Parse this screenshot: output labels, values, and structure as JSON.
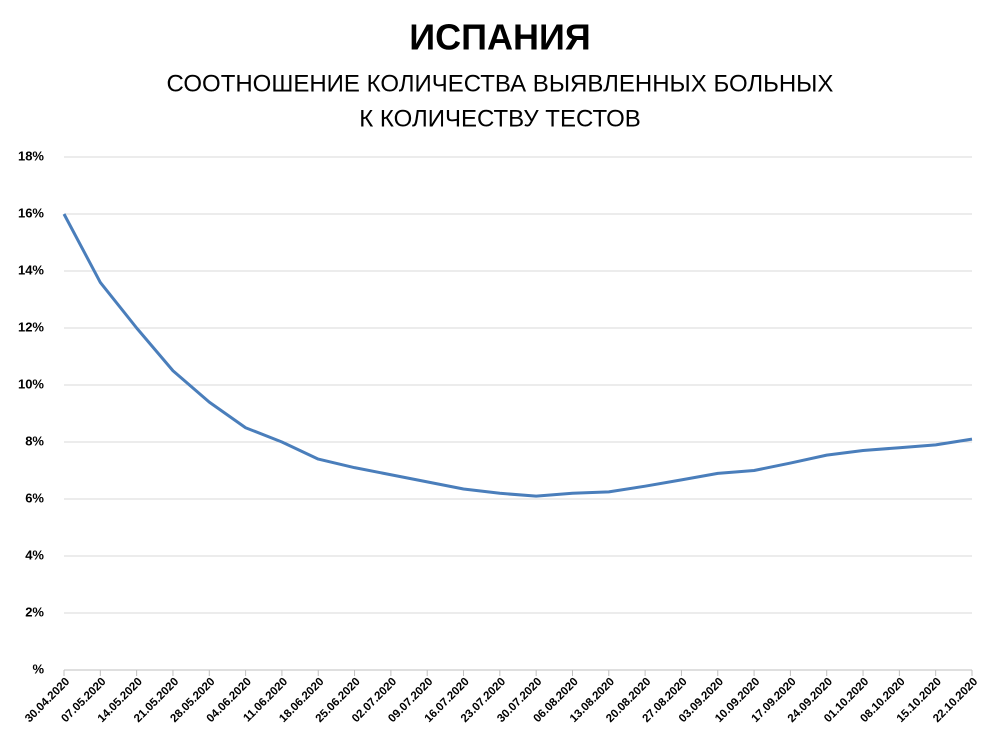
{
  "chart_data": {
    "type": "line",
    "title": "ИСПАНИЯ",
    "subtitle": [
      "СООТНОШЕНИЕ КОЛИЧЕСТВА ВЫЯВЛЕННЫХ БОЛЬНЫХ",
      "К КОЛИЧЕСТВУ ТЕСТОВ"
    ],
    "categories": [
      "30.04.2020",
      "07.05.2020",
      "14.05.2020",
      "21.05.2020",
      "28.05.2020",
      "04.06.2020",
      "11.06.2020",
      "18.06.2020",
      "25.06.2020",
      "02.07.2020",
      "09.07.2020",
      "16.07.2020",
      "23.07.2020",
      "30.07.2020",
      "06.08.2020",
      "13.08.2020",
      "20.08.2020",
      "27.08.2020",
      "03.09.2020",
      "10.09.2020",
      "17.09.2020",
      "24.09.2020",
      "01.10.2020",
      "08.10.2020",
      "15.10.2020",
      "22.10.2020"
    ],
    "values": [
      16.0,
      13.6,
      12.0,
      10.5,
      9.4,
      8.5,
      8.0,
      7.4,
      7.1,
      6.85,
      6.6,
      6.35,
      6.2,
      6.1,
      6.2,
      6.25,
      6.45,
      6.67,
      6.9,
      7.0,
      7.26,
      7.54,
      7.7,
      7.8,
      7.9,
      8.1
    ],
    "color": "#4a7ebb",
    "ylim": [
      0,
      18
    ],
    "yticks": [
      {
        "value": 0,
        "label": "%"
      },
      {
        "value": 2,
        "label": "2%"
      },
      {
        "value": 4,
        "label": "4%"
      },
      {
        "value": 6,
        "label": "6%"
      },
      {
        "value": 8,
        "label": "8%"
      },
      {
        "value": 10,
        "label": "10%"
      },
      {
        "value": 12,
        "label": "12%"
      },
      {
        "value": 14,
        "label": "14%"
      },
      {
        "value": 16,
        "label": "16%"
      },
      {
        "value": 18,
        "label": "18%"
      }
    ],
    "grid": true
  }
}
